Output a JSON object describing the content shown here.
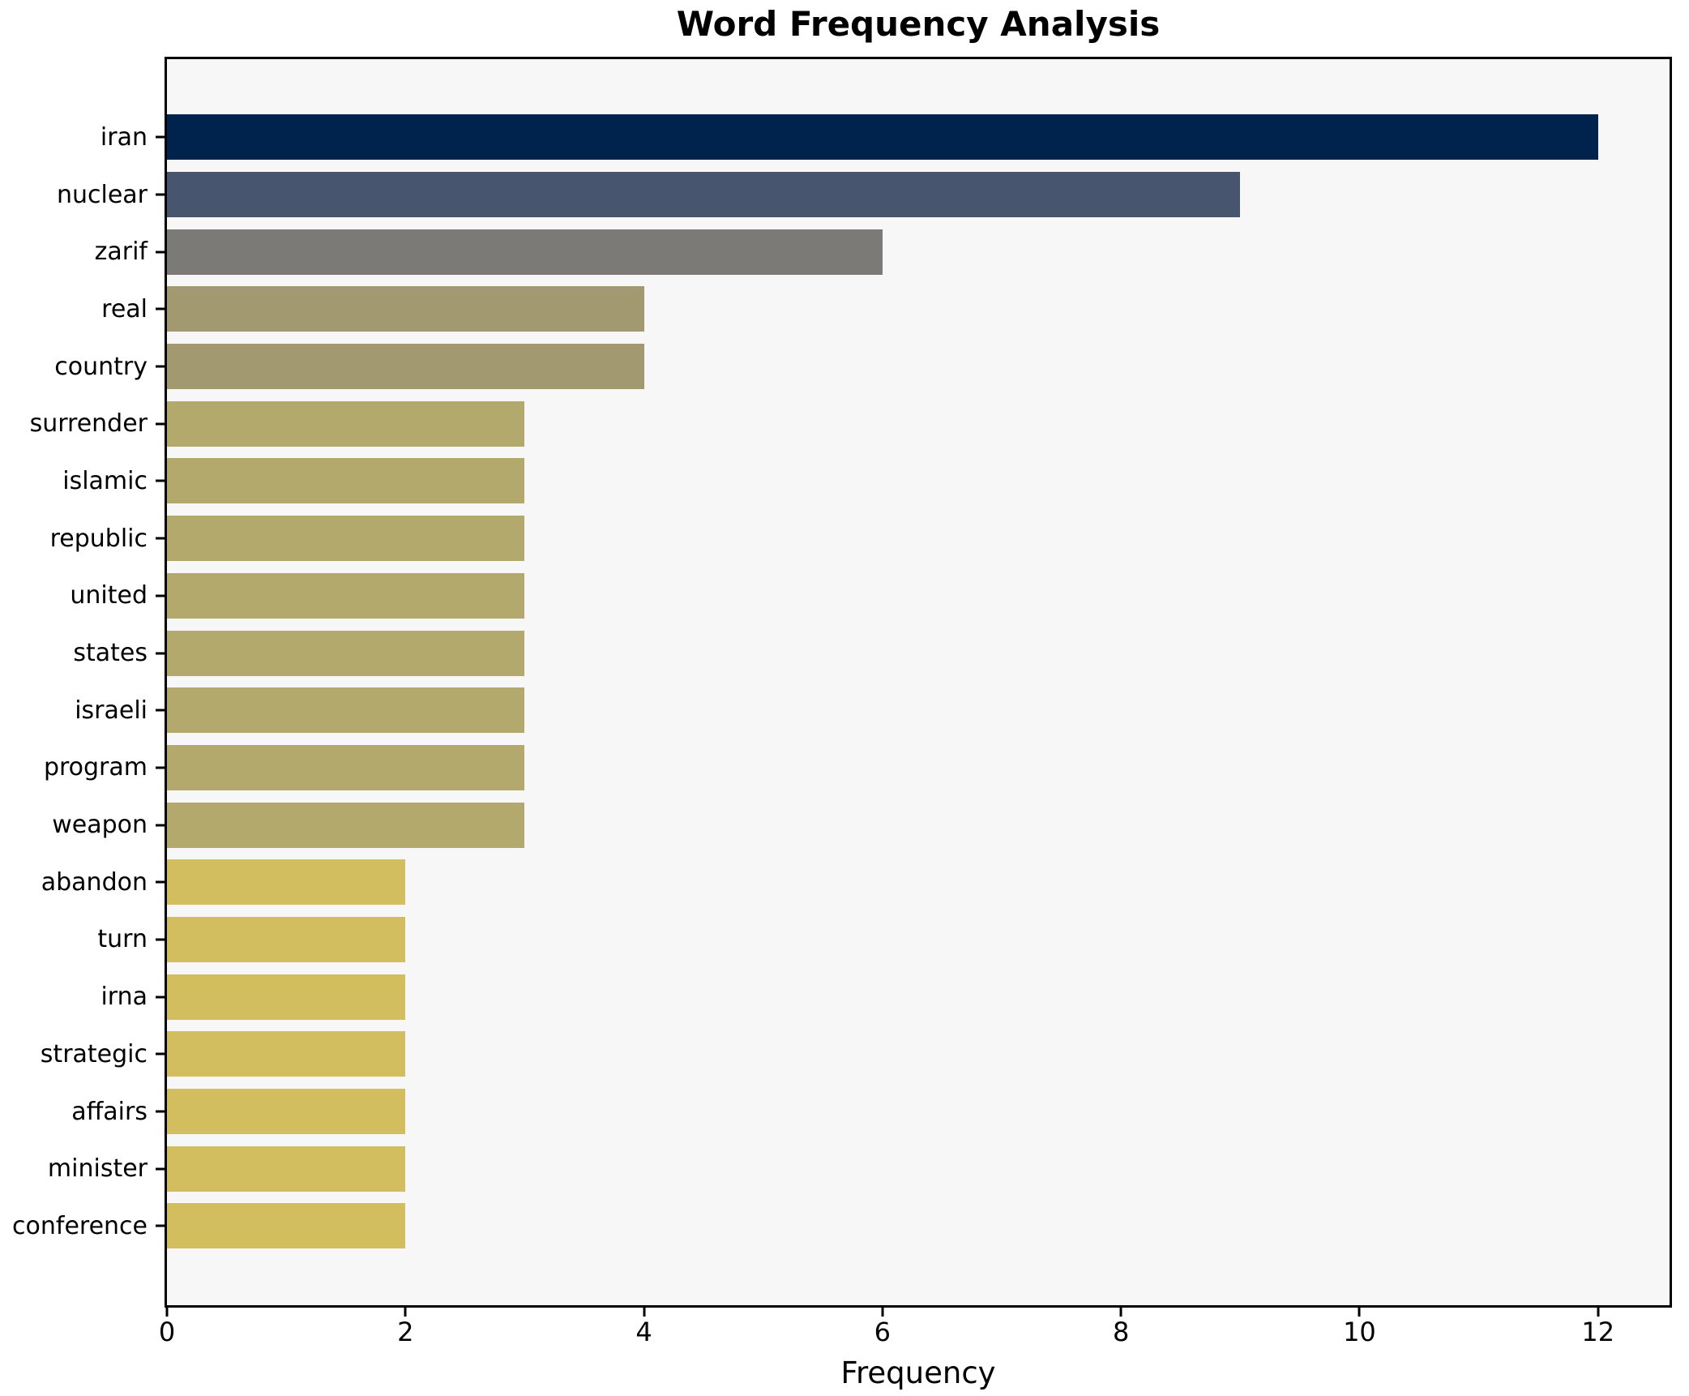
{
  "title": "Word Frequency Analysis",
  "xlabel": "Frequency",
  "colors": {
    "figure_bg": "#ffffff",
    "plot_bg": "#f7f7f7",
    "axis": "#000000",
    "text": "#000000"
  },
  "chart_data": {
    "type": "bar",
    "orientation": "horizontal",
    "title": "Word Frequency Analysis",
    "xlabel": "Frequency",
    "ylabel": "",
    "categories": [
      "iran",
      "nuclear",
      "zarif",
      "real",
      "country",
      "surrender",
      "islamic",
      "republic",
      "united",
      "states",
      "israeli",
      "program",
      "weapon",
      "abandon",
      "turn",
      "irna",
      "strategic",
      "affairs",
      "minister",
      "conference"
    ],
    "values": [
      12,
      9,
      6,
      4,
      4,
      3,
      3,
      3,
      3,
      3,
      3,
      3,
      3,
      2,
      2,
      2,
      2,
      2,
      2,
      2
    ],
    "bar_colors": [
      "#00234e",
      "#48556f",
      "#7b7a77",
      "#a39971",
      "#a39971",
      "#b3a96d",
      "#b3a96d",
      "#b3a96d",
      "#b3a96d",
      "#b3a96d",
      "#b3a96d",
      "#b3a96d",
      "#b3a96d",
      "#d2be5f",
      "#d2be5f",
      "#d2be5f",
      "#d2be5f",
      "#d2be5f",
      "#d2be5f",
      "#d2be5f"
    ],
    "x_ticks": [
      0,
      2,
      4,
      6,
      8,
      10,
      12
    ],
    "xlim": [
      0,
      12.6
    ],
    "grid": false,
    "legend": null,
    "bar_height_fraction": 0.8
  }
}
